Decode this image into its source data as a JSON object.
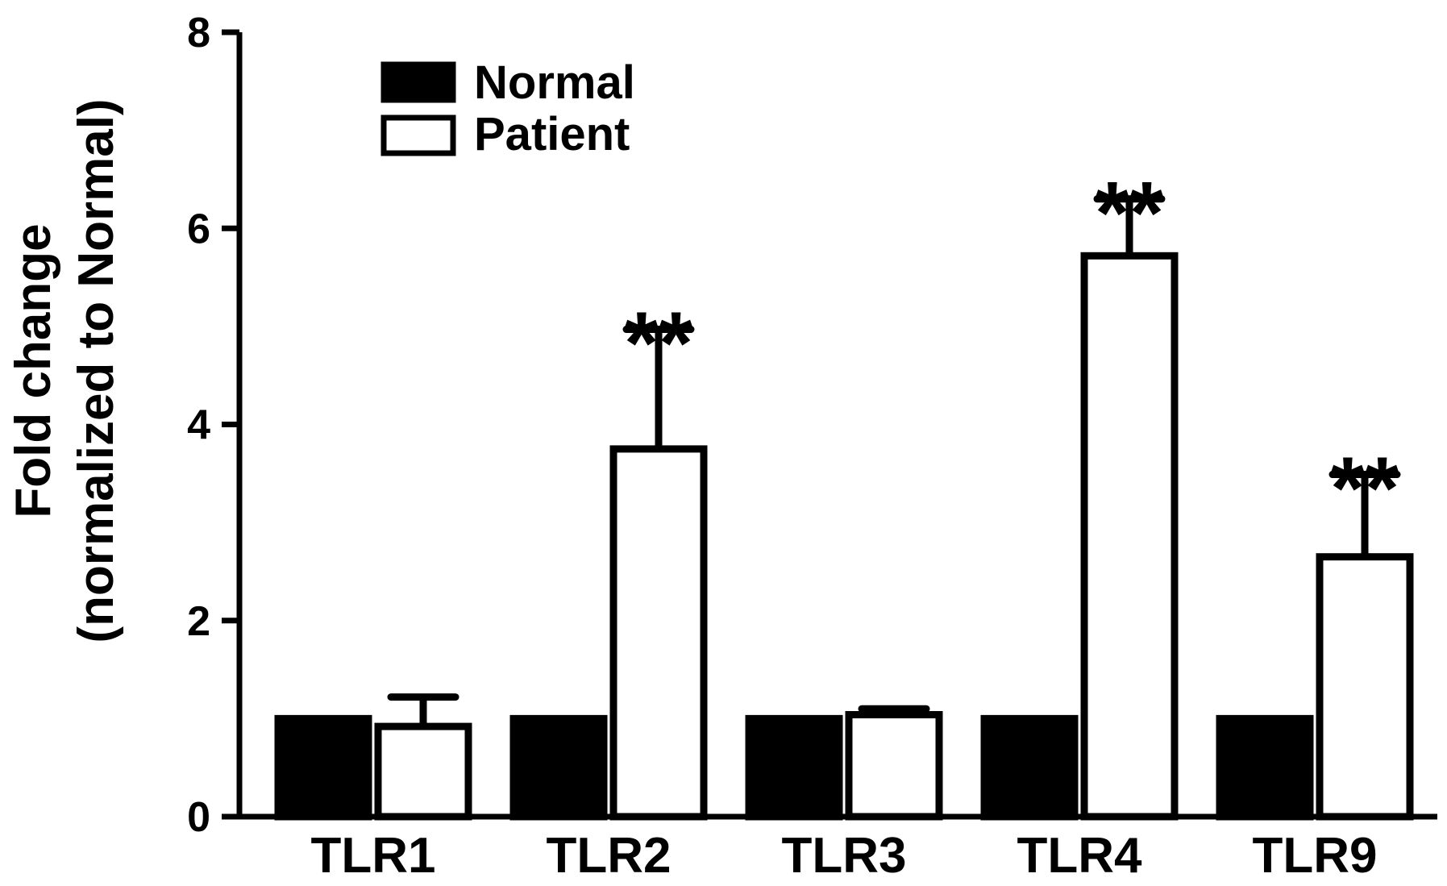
{
  "chart_data": {
    "type": "bar",
    "categories": [
      "TLR1",
      "TLR2",
      "TLR3",
      "TLR4",
      "TLR9"
    ],
    "series": [
      {
        "name": "Normal",
        "values": [
          1.0,
          1.0,
          1.0,
          1.0,
          1.0
        ],
        "errors": [
          0,
          0,
          0,
          0,
          0
        ],
        "color": "#000000"
      },
      {
        "name": "Patient",
        "values": [
          0.92,
          3.75,
          1.04,
          5.72,
          2.65
        ],
        "errors": [
          0.3,
          1.22,
          0.06,
          0.58,
          0.84
        ],
        "color": "#ffffff"
      }
    ],
    "annotations": [
      "",
      "**",
      "",
      "**",
      "**"
    ],
    "ylabel_line1": "Fold change",
    "ylabel_line2": "(normalized to Normal)",
    "yticks": [
      0,
      2,
      4,
      6,
      8
    ],
    "ylim": [
      0,
      8
    ],
    "legend_position": "top-left",
    "grid": false
  }
}
